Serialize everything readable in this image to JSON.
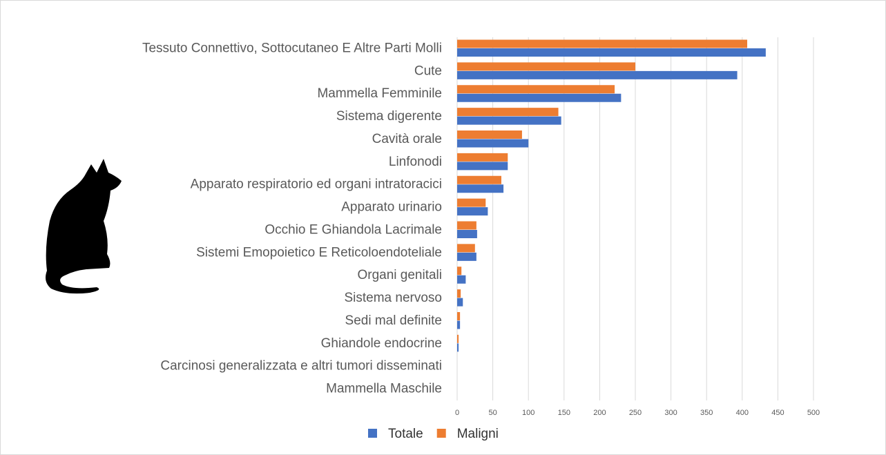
{
  "chart_data": {
    "type": "barh",
    "categories": [
      "Tessuto Connettivo, Sottocutaneo E Altre Parti Molli",
      "Cute",
      "Mammella Femminile",
      "Sistema digerente",
      "Cavità orale",
      "Linfonodi",
      "Apparato respiratorio ed organi intratoracici",
      "Apparato urinario",
      "Occhio E Ghiandola Lacrimale",
      "Sistemi Emopoietico E Reticoloendoteliale",
      "Organi genitali",
      "Sistema nervoso",
      "Sedi mal definite",
      "Ghiandole endocrine",
      "Carcinosi generalizzata e altri tumori disseminati",
      "Mammella Maschile"
    ],
    "series": [
      {
        "name": "Totale",
        "color": "#4472c4",
        "values": [
          433,
          393,
          230,
          146,
          100,
          71,
          65,
          43,
          28,
          27,
          12,
          8,
          4,
          2,
          0,
          0
        ]
      },
      {
        "name": "Maligni",
        "color": "#ed7d31",
        "values": [
          407,
          250,
          221,
          142,
          91,
          71,
          62,
          40,
          27,
          25,
          6,
          5,
          4,
          2,
          0,
          0
        ]
      }
    ],
    "xlim": [
      0,
      500
    ],
    "xticks": [
      0,
      50,
      100,
      150,
      200,
      250,
      300,
      350,
      400,
      450,
      500
    ],
    "grid": true,
    "legend": "bottom"
  }
}
